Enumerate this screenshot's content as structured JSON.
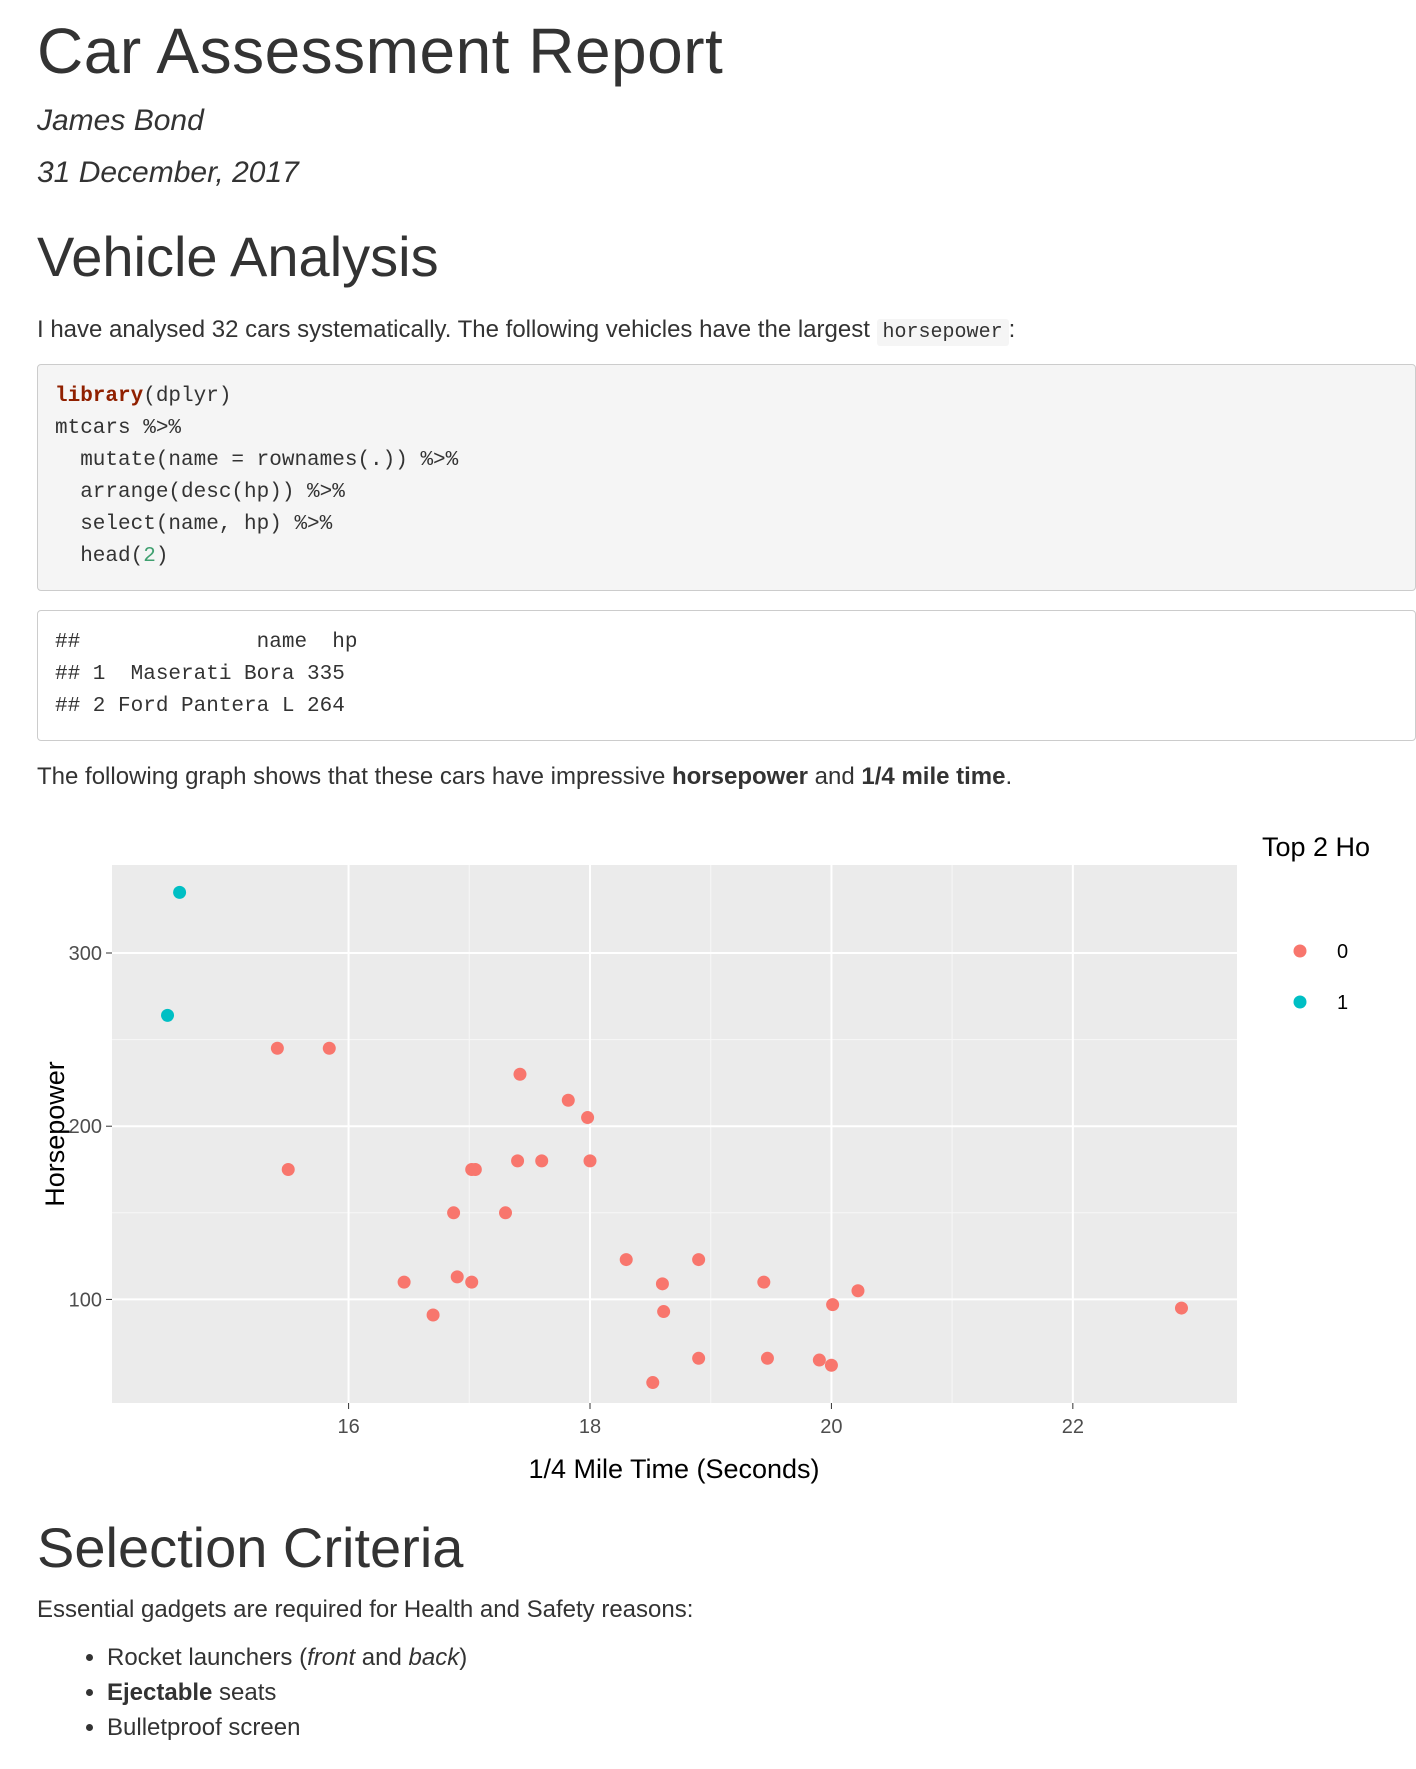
{
  "report": {
    "title": "Car Assessment Report",
    "author": "James Bond",
    "date": "31 December, 2017"
  },
  "section1": {
    "heading": "Vehicle Analysis",
    "intro_text": "I have analysed 32 cars systematically. The following vehicles have the largest ",
    "intro_code": "horsepower",
    "intro_end": ":",
    "code_lines": [
      [
        {
          "t": "library",
          "c": "kw"
        },
        {
          "t": "(dplyr)",
          "c": "plain"
        }
      ],
      [
        {
          "t": "mtcars %>%",
          "c": "plain"
        }
      ],
      [
        {
          "t": "  mutate(name = rownames(.)) %>%",
          "c": "plain"
        }
      ],
      [
        {
          "t": "  arrange(desc(hp)) %>%",
          "c": "plain"
        }
      ],
      [
        {
          "t": "  select(name, hp) %>%",
          "c": "plain"
        }
      ],
      [
        {
          "t": "  head(",
          "c": "plain"
        },
        {
          "t": "2",
          "c": "num"
        },
        {
          "t": ")",
          "c": "plain"
        }
      ]
    ],
    "output_lines": [
      "##              name  hp",
      "## 1  Maserati Bora 335",
      "## 2 Ford Pantera L 264"
    ],
    "graph_text_before": "The following graph shows that these cars have impressive ",
    "graph_bold_1": "horsepower",
    "graph_text_mid": " and ",
    "graph_bold_2": "1/4 mile time",
    "graph_text_end": "."
  },
  "chart_data": {
    "type": "scatter",
    "title": "",
    "xlabel": "1/4 Mile Time (Seconds)",
    "ylabel": "Horsepower",
    "xlim": [
      14.04,
      23.36
    ],
    "ylim": [
      40.2,
      350.8
    ],
    "x_ticks": [
      16,
      18,
      20,
      22
    ],
    "y_ticks": [
      100,
      200,
      300
    ],
    "grid": true,
    "legend_title": "Top 2 Ho",
    "legend_position": "right",
    "series": [
      {
        "name": "0",
        "color": "#F8766D",
        "points": [
          [
            16.46,
            110
          ],
          [
            17.02,
            110
          ],
          [
            18.61,
            93
          ],
          [
            19.44,
            110
          ],
          [
            17.02,
            175
          ],
          [
            20.22,
            105
          ],
          [
            15.84,
            245
          ],
          [
            20.0,
            62
          ],
          [
            22.9,
            95
          ],
          [
            18.3,
            123
          ],
          [
            18.9,
            123
          ],
          [
            17.4,
            180
          ],
          [
            17.6,
            180
          ],
          [
            18.0,
            180
          ],
          [
            17.98,
            205
          ],
          [
            17.82,
            215
          ],
          [
            17.42,
            230
          ],
          [
            19.47,
            66
          ],
          [
            18.52,
            52
          ],
          [
            19.9,
            65
          ],
          [
            20.01,
            97
          ],
          [
            16.87,
            150
          ],
          [
            17.3,
            150
          ],
          [
            15.41,
            245
          ],
          [
            17.05,
            175
          ],
          [
            18.9,
            66
          ],
          [
            16.7,
            91
          ],
          [
            16.9,
            113
          ],
          [
            15.5,
            175
          ],
          [
            18.6,
            109
          ]
        ]
      },
      {
        "name": "1",
        "color": "#00BFC4",
        "points": [
          [
            14.5,
            264
          ],
          [
            14.6,
            335
          ]
        ]
      }
    ]
  },
  "section2": {
    "heading": "Selection Criteria",
    "intro": "Essential gadgets are required for Health and Safety reasons:",
    "item1_a": "Rocket launchers (",
    "item1_em1": "front",
    "item1_b": " and ",
    "item1_em2": "back",
    "item1_c": ")",
    "item2_bold": "Ejectable",
    "item2_rest": " seats",
    "item3": "Bulletproof screen"
  }
}
